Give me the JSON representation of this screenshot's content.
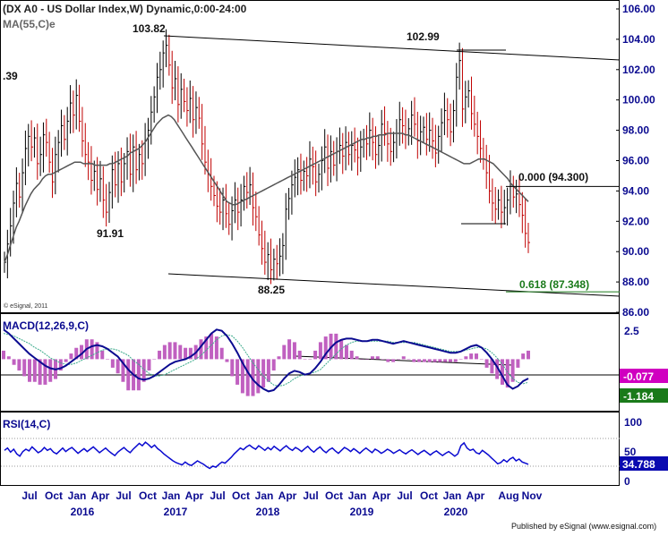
{
  "header": {
    "title": "(DX A0 - US Dollar Index,W) Dynamic,0:00-24:00",
    "ma_label": "MA(55,C)e",
    "copyright": "© eSignal, 2011",
    "footer": "Published by eSignal (www.esignal.com)"
  },
  "chart_data": [
    {
      "type": "line",
      "panel": "price",
      "y_ticks": [
        "106.00",
        "104.00",
        "102.00",
        "100.00",
        "98.00",
        "96.00",
        "94.00",
        "92.00",
        "90.00",
        "88.00",
        "86.00"
      ],
      "ylim": [
        86,
        106
      ],
      "annotations": {
        "left_partial": ".39",
        "high1": "103.82",
        "high2": "102.99",
        "low1": "91.91",
        "low2": "88.25",
        "fib0": "0.000 (94.300)",
        "fib618": "0.618 (87.348)"
      },
      "fib0_value": 94.3,
      "fib618_value": 87.348,
      "close_series": [
        89.3,
        90.5,
        91.7,
        93.2,
        94.5,
        93.6,
        95.2,
        96.8,
        97.6,
        96.9,
        97.5,
        95.8,
        96.4,
        97.7,
        97.2,
        95.9,
        94.6,
        96.4,
        97.2,
        98.3,
        97.4,
        98.6,
        99.8,
        99.0,
        100.3,
        98.6,
        97.3,
        96.4,
        95.9,
        94.7,
        95.3,
        94.1,
        94.8,
        93.4,
        92.6,
        93.9,
        95.4,
        94.4,
        95.8,
        94.6,
        95.8,
        96.6,
        95.1,
        96.9,
        95.4,
        96.4,
        95.8,
        97.3,
        98.0,
        99.2,
        100.2,
        101.5,
        102.0,
        103.1,
        103.6,
        102.3,
        100.8,
        101.4,
        99.7,
        100.7,
        99.9,
        99.3,
        100.1,
        98.7,
        99.5,
        98.8,
        97.1,
        95.9,
        95.1,
        94.3,
        93.7,
        93.0,
        92.6,
        93.4,
        92.5,
        91.8,
        92.7,
        93.4,
        92.6,
        93.4,
        94.3,
        93.9,
        94.4,
        92.9,
        92.3,
        91.1,
        90.2,
        89.3,
        89.8,
        88.8,
        89.5,
        89.2,
        89.7,
        90.4,
        92.8,
        93.5,
        94.4,
        94.9,
        95.4,
        94.7,
        95.3,
        95.0,
        96.1,
        95.6,
        94.6,
        95.1,
        96.0,
        96.9,
        95.5,
        96.6,
        95.7,
        96.6,
        97.0,
        96.3,
        97.2,
        96.4,
        97.0,
        96.7,
        96.2,
        96.9,
        97.4,
        97.1,
        98.0,
        97.2,
        96.4,
        97.0,
        98.4,
        97.8,
        97.1,
        96.6,
        97.2,
        97.8,
        98.7,
        98.3,
        97.7,
        98.1,
        99.0,
        98.4,
        97.3,
        97.9,
        98.2,
        97.4,
        98.0,
        97.3,
        96.5,
        97.6,
        98.5,
        99.3,
        98.7,
        97.9,
        99.3,
        101.5,
        102.6,
        99.4,
        100.2,
        100.6,
        99.1,
        98.4,
        97.6,
        96.8,
        96.1,
        95.2,
        94.0,
        93.2,
        92.8,
        93.4,
        92.6,
        92.9,
        93.4,
        94.3,
        93.6,
        93.8,
        93.1,
        92.4,
        91.2,
        90.6
      ],
      "ma_series": [
        89.3,
        89.8,
        90.4,
        91.0,
        91.6,
        92.0,
        92.5,
        93.0,
        93.4,
        93.8,
        94.1,
        94.3,
        94.5,
        94.8,
        95.0,
        95.1,
        95.1,
        95.2,
        95.3,
        95.4,
        95.5,
        95.6,
        95.7,
        95.8,
        95.9,
        95.9,
        95.9,
        95.8,
        95.8,
        95.8,
        95.8,
        95.7,
        95.7,
        95.7,
        95.7,
        95.7,
        95.8,
        95.8,
        95.9,
        96.0,
        96.1,
        96.2,
        96.3,
        96.5,
        96.6,
        96.7,
        96.8,
        97.0,
        97.2,
        97.5,
        97.8,
        98.1,
        98.4,
        98.6,
        98.8,
        98.9,
        99.0,
        98.9,
        98.7,
        98.4,
        98.1,
        97.8,
        97.5,
        97.2,
        96.9,
        96.6,
        96.3,
        96.0,
        95.7,
        95.4,
        95.1,
        94.8,
        94.5,
        94.2,
        93.9,
        93.6,
        93.3,
        93.2,
        93.1,
        93.1,
        93.2,
        93.3,
        93.4,
        93.5,
        93.6,
        93.7,
        93.8,
        93.9,
        94.0,
        94.1,
        94.2,
        94.3,
        94.4,
        94.5,
        94.6,
        94.7,
        94.8,
        94.9,
        95.0,
        95.1,
        95.2,
        95.3,
        95.4,
        95.5,
        95.6,
        95.7,
        95.8,
        95.9,
        96.0,
        96.1,
        96.2,
        96.3,
        96.4,
        96.5,
        96.6,
        96.7,
        96.8,
        96.9,
        97.0,
        97.1,
        97.2,
        97.3,
        97.4,
        97.4,
        97.5,
        97.5,
        97.6,
        97.6,
        97.7,
        97.7,
        97.7,
        97.8,
        97.8,
        97.8,
        97.8,
        97.8,
        97.8,
        97.7,
        97.7,
        97.6,
        97.5,
        97.4,
        97.3,
        97.2,
        97.1,
        97.0,
        96.9,
        96.8,
        96.7,
        96.6,
        96.5,
        96.4,
        96.3,
        96.2,
        96.1,
        96.0,
        95.9,
        95.8,
        95.8,
        95.8,
        95.9,
        96.0,
        96.1,
        96.1,
        96.1,
        96.0,
        95.9,
        95.8,
        95.6,
        95.4,
        95.2,
        95.0,
        94.8,
        94.5,
        94.3,
        94.1,
        93.9,
        93.7,
        93.5,
        93.3
      ]
    },
    {
      "type": "line",
      "panel": "macd",
      "title": "MACD(12,26,9,C)",
      "y_ticks": [
        "2.5"
      ],
      "ylim": [
        -4,
        3.5
      ],
      "values_label": [
        "-0.077",
        "-1.184"
      ],
      "macd_series": [
        2.3,
        2.0,
        1.6,
        1.2,
        0.8,
        0.4,
        0.1,
        -0.2,
        -0.5,
        -0.7,
        -0.8,
        -0.7,
        -0.5,
        -0.2,
        0.1,
        0.4,
        0.8,
        1.0,
        1.1,
        1.0,
        0.8,
        0.5,
        0.2,
        -0.3,
        -0.8,
        -1.2,
        -1.5,
        -1.6,
        -1.5,
        -1.3,
        -1.0,
        -0.7,
        -0.4,
        -0.2,
        -0.1,
        0.0,
        0.2,
        0.5,
        1.0,
        1.5,
        2.0,
        2.3,
        2.2,
        1.8,
        1.2,
        0.5,
        -0.3,
        -1.0,
        -1.6,
        -2.0,
        -2.3,
        -2.5,
        -2.4,
        -2.0,
        -1.5,
        -1.1,
        -0.9,
        -1.0,
        -1.2,
        -1.1,
        -0.7,
        -0.2,
        0.4,
        0.9,
        1.3,
        1.5,
        1.6,
        1.6,
        1.5,
        1.4,
        1.4,
        1.5,
        1.5,
        1.4,
        1.3,
        1.2,
        1.3,
        1.4,
        1.3,
        1.2,
        1.1,
        1.0,
        0.9,
        0.8,
        0.7,
        0.6,
        0.5,
        0.5,
        0.6,
        0.8,
        1.0,
        1.1,
        0.9,
        0.5,
        0.0,
        -0.6,
        -1.3,
        -2.0,
        -2.3,
        -2.1,
        -1.7,
        -1.5
      ],
      "signal_series": [
        2.0,
        1.9,
        1.8,
        1.6,
        1.4,
        1.2,
        0.9,
        0.7,
        0.4,
        0.1,
        -0.1,
        -0.3,
        -0.4,
        -0.4,
        -0.3,
        -0.1,
        0.1,
        0.3,
        0.5,
        0.7,
        0.8,
        0.8,
        0.7,
        0.5,
        0.3,
        -0.1,
        -0.4,
        -0.8,
        -1.1,
        -1.3,
        -1.3,
        -1.2,
        -1.0,
        -0.8,
        -0.6,
        -0.4,
        -0.2,
        0.0,
        0.3,
        0.7,
        1.1,
        1.5,
        1.8,
        1.9,
        1.8,
        1.4,
        0.9,
        0.3,
        -0.3,
        -0.8,
        -1.3,
        -1.7,
        -2.0,
        -2.1,
        -2.0,
        -1.8,
        -1.5,
        -1.3,
        -1.2,
        -1.1,
        -1.0,
        -0.8,
        -0.4,
        0.0,
        0.4,
        0.8,
        1.1,
        1.3,
        1.4,
        1.4,
        1.4,
        1.4,
        1.4,
        1.4,
        1.4,
        1.3,
        1.3,
        1.3,
        1.3,
        1.3,
        1.2,
        1.1,
        1.0,
        0.9,
        0.8,
        0.7,
        0.6,
        0.6,
        0.6,
        0.7,
        0.8,
        0.9,
        0.9,
        0.8,
        0.5,
        0.1,
        -0.4,
        -1.0,
        -1.5,
        -1.8,
        -1.9,
        -1.8
      ]
    },
    {
      "type": "line",
      "panel": "rsi",
      "title": "RSI(14,C)",
      "y_ticks": [
        "100",
        "50",
        "0"
      ],
      "ylim": [
        0,
        100
      ],
      "value_label": "34.788",
      "rsi_series": [
        58,
        62,
        55,
        60,
        52,
        48,
        56,
        60,
        57,
        64,
        59,
        54,
        57,
        63,
        58,
        61,
        55,
        52,
        57,
        62,
        56,
        60,
        63,
        58,
        53,
        57,
        61,
        56,
        60,
        64,
        59,
        54,
        58,
        62,
        57,
        53,
        49,
        55,
        59,
        63,
        58,
        54,
        60,
        65,
        70,
        66,
        72,
        68,
        63,
        67,
        61,
        57,
        52,
        48,
        44,
        40,
        37,
        35,
        33,
        38,
        34,
        32,
        36,
        40,
        37,
        34,
        30,
        27,
        31,
        29,
        34,
        38,
        36,
        41,
        46,
        52,
        57,
        62,
        59,
        64,
        67,
        63,
        60,
        66,
        62,
        58,
        63,
        59,
        65,
        61,
        57,
        62,
        66,
        61,
        58,
        63,
        60,
        56,
        61,
        65,
        59,
        55,
        60,
        64,
        58,
        54,
        59,
        62,
        57,
        53,
        58,
        63,
        60,
        56,
        61,
        57,
        53,
        58,
        62,
        58,
        54,
        60,
        57,
        53,
        56,
        60,
        57,
        53,
        56,
        59,
        55,
        52,
        56,
        59,
        55,
        51,
        55,
        58,
        54,
        50,
        54,
        57,
        53,
        49,
        53,
        56,
        52,
        48,
        52,
        66,
        71,
        62,
        58,
        60,
        54,
        52,
        58,
        54,
        50,
        45,
        40,
        35,
        37,
        42,
        38,
        43,
        46,
        40,
        43,
        38,
        36,
        34
      ]
    },
    {
      "type": "line",
      "panel": "x-axis",
      "month_labels": [
        "Jul",
        "Oct",
        "Jan",
        "Apr",
        "Jul",
        "Oct",
        "Jan",
        "Apr",
        "Jul",
        "Oct",
        "Jan",
        "Apr",
        "Jul",
        "Oct",
        "Jan",
        "Apr",
        "Jul",
        "Oct",
        "Jan",
        "Apr",
        "Aug",
        "Nov"
      ],
      "year_labels": [
        "2016",
        "2017",
        "2018",
        "2019",
        "2020"
      ]
    }
  ],
  "colors": {
    "axis_blue": "#0a0a90",
    "price_black": "#000000",
    "price_red": "#c00000",
    "ma_gray": "#555555",
    "macd_blue": "#0a0a90",
    "signal_teal": "#3aaa8a",
    "hist_pink": "#c060c0",
    "fib_green": "#1a7a1a",
    "label_pink": "#d000c0",
    "label_green": "#1a7a1a",
    "label_blue": "#0a0ab0"
  }
}
